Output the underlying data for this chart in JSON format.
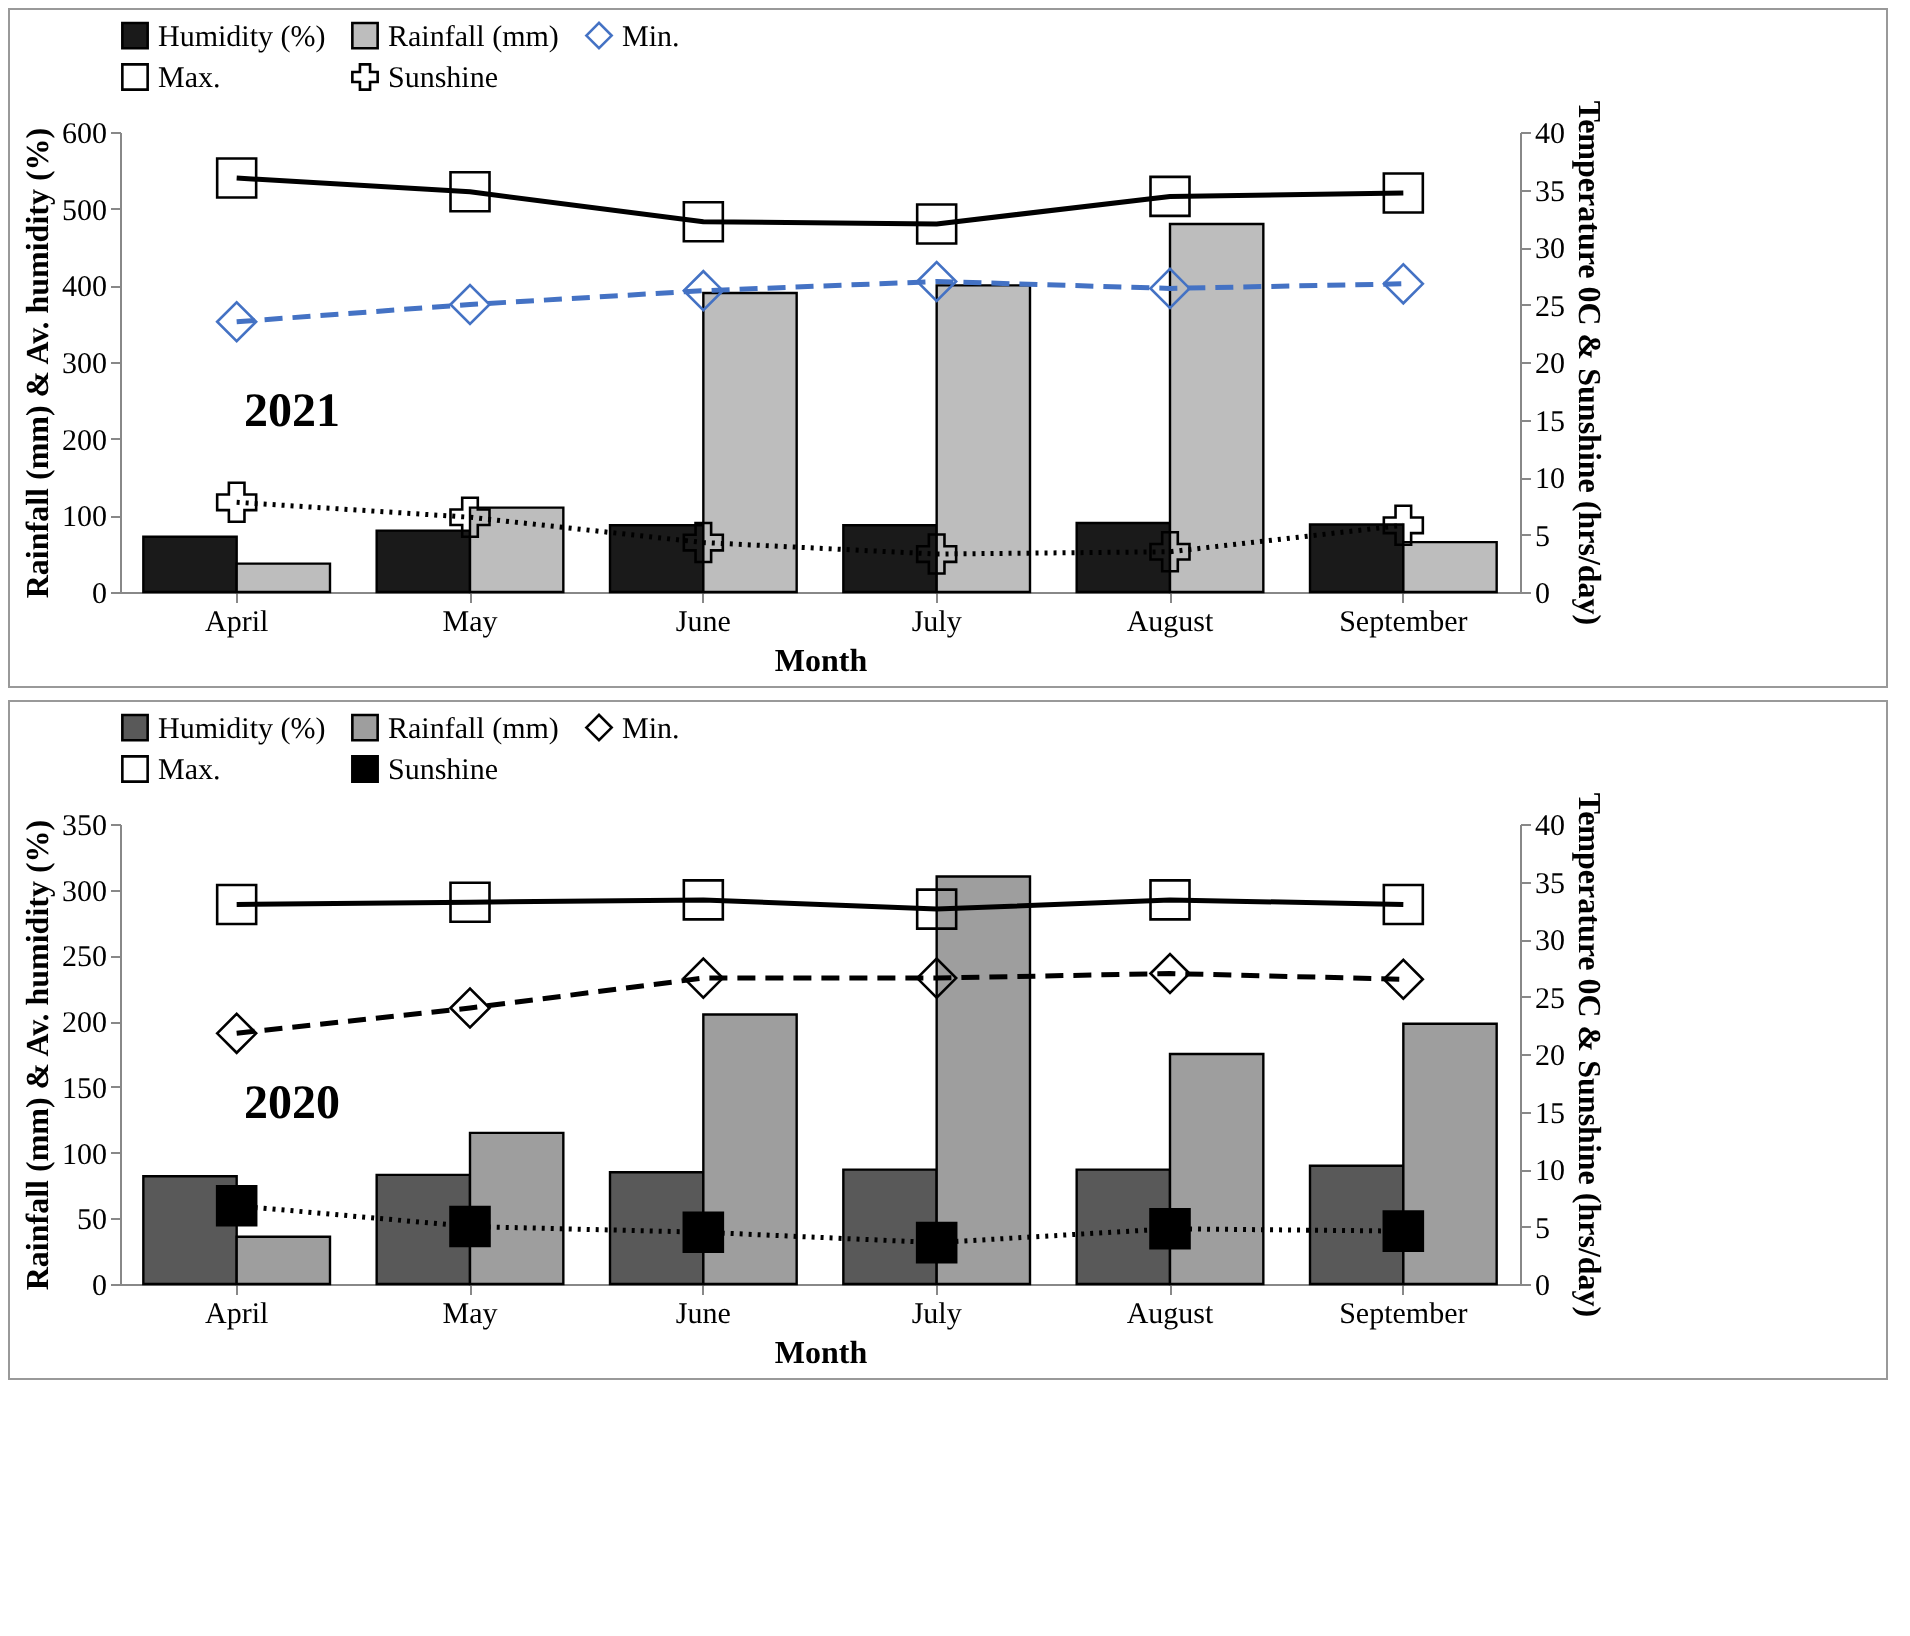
{
  "chart_data": [
    {
      "type": "bar",
      "annotations": [
        "2021"
      ],
      "xlabel": "Month",
      "ylabel": "Rainfall (mm) & Av. humidity (%)",
      "y2label": "Temperature 0C & Sunshine (hrs/day)",
      "categories": [
        "April",
        "May",
        "June",
        "July",
        "August",
        "September"
      ],
      "ylim": [
        0,
        600
      ],
      "yticks": [
        0,
        100,
        200,
        300,
        400,
        500,
        600
      ],
      "y2lim": [
        0,
        40
      ],
      "y2ticks": [
        0,
        5,
        10,
        15,
        20,
        25,
        30,
        35,
        40
      ],
      "legend": "top",
      "series": [
        {
          "name": "Humidity (%)",
          "color": "#1a1a1a",
          "values": [
            72,
            80,
            87,
            87,
            90,
            88
          ]
        },
        {
          "name": "Rainfall (mm)",
          "color": "#bdbdbd",
          "values": [
            37,
            110,
            390,
            400,
            480,
            65
          ]
        },
        {
          "name": "Min.",
          "type": "line",
          "axis": "y2",
          "color": "#4472c4",
          "marker": "diamond",
          "line_style": "dashed",
          "values": [
            23.5,
            25,
            26.2,
            27,
            26.4,
            26.8
          ]
        },
        {
          "name": "Max.",
          "type": "line",
          "axis": "y2",
          "color": "#000000",
          "marker": "square",
          "line_style": "solid",
          "values": [
            36,
            34.8,
            32.2,
            32,
            34.4,
            34.7
          ]
        },
        {
          "name": "Sunshine",
          "type": "line",
          "axis": "y2",
          "color": "#000000",
          "marker": "cross",
          "line_style": "dotted",
          "values": [
            7.8,
            6.5,
            4.3,
            3.3,
            3.5,
            5.8
          ]
        }
      ]
    },
    {
      "type": "bar",
      "annotations": [
        "2020"
      ],
      "xlabel": "Month",
      "ylabel": "Rainfall (mm) & Av. humidity (%)",
      "y2label": "Temperature 0C & Sunshine (hrs/day)",
      "categories": [
        "April",
        "May",
        "June",
        "July",
        "August",
        "September"
      ],
      "ylim": [
        0,
        350
      ],
      "yticks": [
        0,
        50,
        100,
        150,
        200,
        250,
        300,
        350
      ],
      "y2lim": [
        0,
        40
      ],
      "y2ticks": [
        0,
        5,
        10,
        15,
        20,
        25,
        30,
        35,
        40
      ],
      "legend": "top",
      "series": [
        {
          "name": "Humidity (%)",
          "color": "#595959",
          "values": [
            82,
            83,
            85,
            87,
            87,
            90
          ]
        },
        {
          "name": "Rainfall (mm)",
          "color": "#9e9e9e",
          "values": [
            36,
            115,
            205,
            310,
            175,
            198
          ]
        },
        {
          "name": "Min.",
          "type": "line",
          "axis": "y2",
          "color": "#000000",
          "marker": "diamond",
          "line_style": "dashed",
          "values": [
            21.8,
            24,
            26.6,
            26.6,
            27,
            26.5
          ]
        },
        {
          "name": "Max.",
          "type": "line",
          "axis": "y2",
          "color": "#000000",
          "marker": "square",
          "line_style": "solid",
          "values": [
            33,
            33.2,
            33.4,
            32.6,
            33.4,
            33
          ]
        },
        {
          "name": "Sunshine",
          "type": "line",
          "axis": "y2",
          "color": "#000000",
          "marker": "square",
          "line_style": "dotted",
          "values": [
            6.8,
            5,
            4.5,
            3.6,
            4.8,
            4.6
          ]
        }
      ]
    }
  ]
}
